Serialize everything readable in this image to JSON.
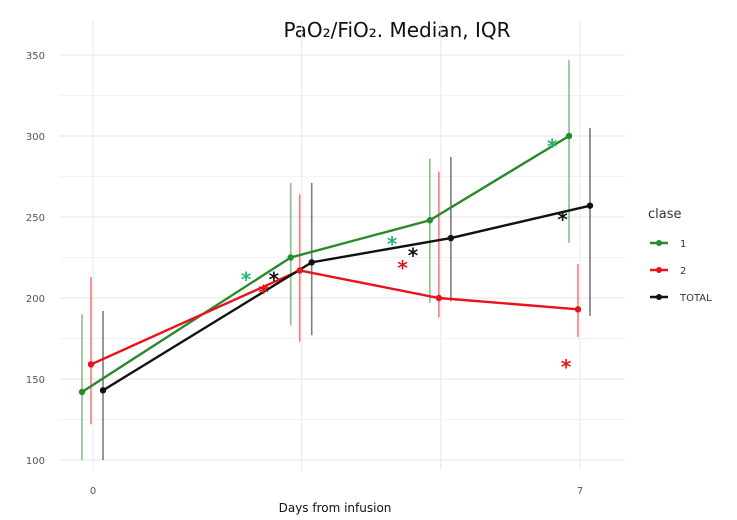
{
  "chart_data": {
    "type": "line",
    "title": "PaO₂/FiO₂. Median, IQR",
    "xlabel": "Days from infusion",
    "ylabel": "",
    "x_tick_labels": [
      "0",
      "7"
    ],
    "y_ticks": [
      100,
      150,
      200,
      250,
      300,
      350
    ],
    "ylim": [
      95,
      358
    ],
    "grid": true,
    "legend_title": "clase",
    "legend_placement": "right",
    "series": [
      {
        "name": "1",
        "color": "#2a8a2a",
        "points": [
          {
            "x": 0,
            "y": 142,
            "low": 100,
            "high": 190
          },
          {
            "x": 3,
            "y": 225,
            "low": 183,
            "high": 271
          },
          {
            "x": 5,
            "y": 248,
            "low": 197,
            "high": 286
          },
          {
            "x": 7,
            "y": 300,
            "low": 234,
            "high": 347
          }
        ]
      },
      {
        "name": "2",
        "color": "#e8141c",
        "points": [
          {
            "x": 0,
            "y": 159,
            "low": 122,
            "high": 213
          },
          {
            "x": 3,
            "y": 217,
            "low": 173,
            "high": 264
          },
          {
            "x": 5,
            "y": 200,
            "low": 188,
            "high": 278
          },
          {
            "x": 7,
            "y": 193,
            "low": 176,
            "high": 221
          }
        ]
      },
      {
        "name": "TOTAL",
        "color": "#111111",
        "points": [
          {
            "x": 0,
            "y": 143,
            "low": 100,
            "high": 192
          },
          {
            "x": 3,
            "y": 222,
            "low": 177,
            "high": 271
          },
          {
            "x": 5,
            "y": 237,
            "low": 198,
            "high": 287
          },
          {
            "x": 7,
            "y": 257,
            "low": 189,
            "high": 305
          }
        ]
      }
    ],
    "annotations": [
      {
        "text": "*",
        "color": "#22b573",
        "x": 2.2,
        "y": 212
      },
      {
        "text": "*",
        "color": "#e8141c",
        "x": 2.45,
        "y": 204
      },
      {
        "text": "*",
        "color": "#111111",
        "x": 2.6,
        "y": 212
      },
      {
        "text": "*",
        "color": "#22b573",
        "x": 4.3,
        "y": 234
      },
      {
        "text": "*",
        "color": "#e8141c",
        "x": 4.45,
        "y": 219
      },
      {
        "text": "*",
        "color": "#111111",
        "x": 4.6,
        "y": 227
      },
      {
        "text": "*",
        "color": "#22b573",
        "x": 6.6,
        "y": 294
      },
      {
        "text": "*",
        "color": "#111111",
        "x": 6.75,
        "y": 249
      },
      {
        "text": "*",
        "color": "#e8141c",
        "x": 6.8,
        "y": 158
      }
    ]
  }
}
